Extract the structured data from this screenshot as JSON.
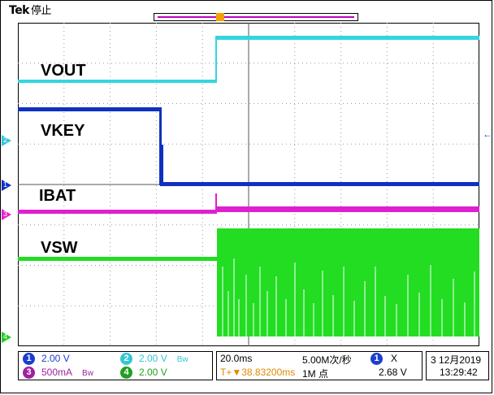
{
  "header": {
    "brand": "Tek",
    "state": "停止"
  },
  "trigger_marker": "T",
  "channels": [
    {
      "name": "VOUT",
      "color": "#33d6e0",
      "num": "1"
    },
    {
      "name": "VKEY",
      "color": "#1030c0",
      "num": "2"
    },
    {
      "name": "IBAT",
      "color": "#e020d0",
      "num": "3"
    },
    {
      "name": "VSW",
      "color": "#22dd22",
      "num": "4"
    }
  ],
  "side_markers": {
    "ch2": "2",
    "ch1": "1",
    "ch3": "3",
    "ch4": "4"
  },
  "readout": {
    "ch1": {
      "num": "1",
      "value": "2.00 V",
      "color": "#1a3fd0"
    },
    "ch2": {
      "num": "2",
      "value": "2.00 V",
      "color": "#33c6d6"
    },
    "ch3": {
      "num": "3",
      "value": "500mA",
      "color": "#a020a0"
    },
    "ch4": {
      "num": "4",
      "value": "2.00 V",
      "color": "#20a020"
    },
    "bw_icon": "Bw",
    "timebase": "20.0ms",
    "sample_rate": "5.00M次/秒",
    "trigger_delay": "T+▼38.83200ms",
    "record_length": "1M 点",
    "trigger_source": "1",
    "trigger_coupling": "X",
    "trigger_level": "2.68 V",
    "date": "3 12月2019",
    "time": "13:29:42"
  }
}
